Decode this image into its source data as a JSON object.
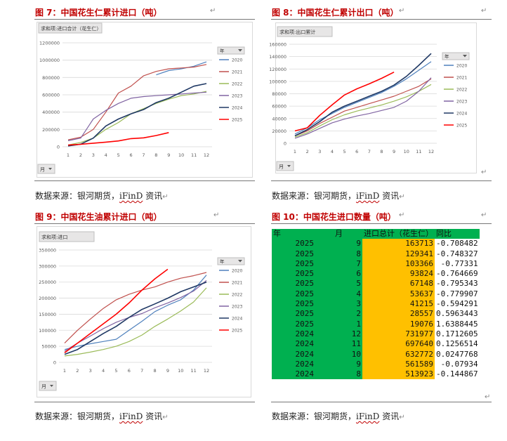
{
  "figures": {
    "fig7": {
      "title": "图 7：中国花生仁累计进口（吨）"
    },
    "fig8": {
      "title": "图 8：中国花生仁累计出口（吨）"
    },
    "fig9": {
      "title": "图 9：中国花生油累计进口（吨）"
    },
    "fig10": {
      "title": "图 10：中国花生进口数量（吨）"
    }
  },
  "source": {
    "prefix": "数据来源：银河期货，",
    "ifind": "iFinD",
    "suffix": " 资讯"
  },
  "marks": {
    "return": "↵"
  },
  "colors": {
    "2020": "#4f81bd",
    "2021": "#c0504d",
    "2022": "#9bbb59",
    "2023": "#8064a2",
    "2024": "#1f3864",
    "2025": "#ff0000"
  },
  "chart_data": [
    {
      "id": "fig7",
      "type": "line",
      "field_button": "求和项:进口合计（花生仁）",
      "filter_label": "年",
      "axis_button": "月",
      "x": [
        1,
        2,
        3,
        4,
        5,
        6,
        7,
        8,
        9,
        10,
        11,
        12
      ],
      "ylim": [
        0,
        1200000
      ],
      "yticks": [
        0,
        200000,
        400000,
        600000,
        800000,
        1000000,
        1200000
      ],
      "series": [
        {
          "name": "2020",
          "values": [
            null,
            null,
            null,
            null,
            null,
            null,
            null,
            830000,
            880000,
            900000,
            930000,
            980000
          ]
        },
        {
          "name": "2021",
          "values": [
            80000,
            110000,
            200000,
            400000,
            620000,
            700000,
            820000,
            870000,
            900000,
            910000,
            920000,
            950000
          ]
        },
        {
          "name": "2022",
          "values": [
            20000,
            50000,
            100000,
            200000,
            280000,
            380000,
            440000,
            500000,
            550000,
            590000,
            610000,
            640000
          ]
        },
        {
          "name": "2023",
          "values": [
            70000,
            100000,
            320000,
            420000,
            500000,
            560000,
            580000,
            590000,
            600000,
            610000,
            620000,
            630000
          ]
        },
        {
          "name": "2024",
          "values": [
            10000,
            30000,
            100000,
            240000,
            320000,
            380000,
            430000,
            510000,
            560000,
            630000,
            700000,
            730000
          ]
        },
        {
          "name": "2025",
          "values": [
            19076,
            28557,
            41215,
            53637,
            67148,
            93824,
            103366,
            129341,
            163713,
            null,
            null,
            null
          ]
        }
      ]
    },
    {
      "id": "fig8",
      "type": "line",
      "field_button": "求和项:出口累计",
      "filter_label": "年",
      "axis_button": "月",
      "x": [
        1,
        2,
        3,
        4,
        5,
        6,
        7,
        8,
        9,
        10,
        11,
        12
      ],
      "ylim": [
        0,
        160000
      ],
      "yticks": [
        0,
        20000,
        40000,
        60000,
        80000,
        100000,
        120000,
        140000,
        160000
      ],
      "series": [
        {
          "name": "2020",
          "values": [
            15000,
            25000,
            38000,
            48000,
            58000,
            66000,
            74000,
            82000,
            92000,
            104000,
            118000,
            132000
          ]
        },
        {
          "name": "2021",
          "values": [
            12000,
            20000,
            32000,
            42000,
            52000,
            58000,
            64000,
            70000,
            76000,
            84000,
            92000,
            104000
          ]
        },
        {
          "name": "2022",
          "values": [
            10000,
            17000,
            28000,
            38000,
            46000,
            52000,
            57000,
            62000,
            68000,
            75000,
            84000,
            95000
          ]
        },
        {
          "name": "2023",
          "values": [
            8000,
            15000,
            24000,
            33000,
            39000,
            44000,
            48000,
            53000,
            58000,
            68000,
            84000,
            106000
          ]
        },
        {
          "name": "2024",
          "values": [
            12000,
            22000,
            35000,
            50000,
            60000,
            68000,
            76000,
            84000,
            94000,
            108000,
            126000,
            145000
          ]
        },
        {
          "name": "2025",
          "values": [
            20000,
            25000,
            45000,
            62000,
            78000,
            88000,
            96000,
            105000,
            115000,
            null,
            null,
            null
          ]
        }
      ]
    },
    {
      "id": "fig9",
      "type": "line",
      "field_button": "求和项:进口",
      "filter_label": "年",
      "axis_button": "月",
      "x": [
        1,
        2,
        3,
        4,
        5,
        6,
        7,
        8,
        9,
        10,
        11,
        12
      ],
      "ylim": [
        0,
        350000
      ],
      "yticks": [
        0,
        50000,
        100000,
        150000,
        200000,
        250000,
        300000,
        350000
      ],
      "series": [
        {
          "name": "2020",
          "values": [
            40000,
            50000,
            58000,
            65000,
            72000,
            100000,
            128000,
            158000,
            178000,
            195000,
            225000,
            272000
          ]
        },
        {
          "name": "2021",
          "values": [
            60000,
            100000,
            135000,
            168000,
            195000,
            212000,
            225000,
            235000,
            250000,
            262000,
            270000,
            280000
          ]
        },
        {
          "name": "2022",
          "values": [
            20000,
            25000,
            32000,
            40000,
            50000,
            65000,
            85000,
            112000,
            135000,
            160000,
            188000,
            232000
          ]
        },
        {
          "name": "2023",
          "values": [
            35000,
            60000,
            82000,
            105000,
            125000,
            140000,
            152000,
            170000,
            185000,
            202000,
            222000,
            255000
          ]
        },
        {
          "name": "2024",
          "values": [
            25000,
            40000,
            65000,
            90000,
            112000,
            140000,
            165000,
            182000,
            200000,
            220000,
            235000,
            250000
          ]
        },
        {
          "name": "2025",
          "values": [
            30000,
            60000,
            90000,
            120000,
            150000,
            185000,
            225000,
            260000,
            290000,
            null,
            null,
            null
          ]
        }
      ]
    },
    {
      "id": "fig10",
      "type": "table",
      "columns": [
        "年",
        "月",
        "进口总计（花生仁）",
        "同比"
      ],
      "rows": [
        [
          "2025",
          "9",
          "163713",
          "-0.708482"
        ],
        [
          "2025",
          "8",
          "129341",
          "-0.748327"
        ],
        [
          "2025",
          "7",
          "103366",
          "-0.77331"
        ],
        [
          "2025",
          "6",
          "93824",
          "-0.764669"
        ],
        [
          "2025",
          "5",
          "67148",
          "-0.795343"
        ],
        [
          "2025",
          "4",
          "53637",
          "-0.779907"
        ],
        [
          "2025",
          "3",
          "41215",
          "-0.594291"
        ],
        [
          "2025",
          "2",
          "28557",
          "0.5963443"
        ],
        [
          "2025",
          "1",
          "19076",
          "1.6388445"
        ],
        [
          "2024",
          "12",
          "731977",
          "0.1712605"
        ],
        [
          "2024",
          "11",
          "697640",
          "0.1256514"
        ],
        [
          "2024",
          "10",
          "632772",
          "0.0247768"
        ],
        [
          "2024",
          "9",
          "561589",
          "-0.07934"
        ],
        [
          "2024",
          "8",
          "513923",
          "-0.144867"
        ]
      ]
    }
  ]
}
